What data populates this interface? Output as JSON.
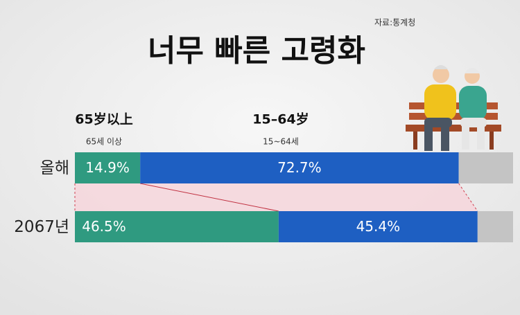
{
  "chart_data": {
    "type": "stacked-hbar",
    "source": "자료:통계청",
    "title": "너무 빠른 고령화",
    "categories": [
      "올해",
      "2067년"
    ],
    "series": [
      {
        "name": "65세 이상",
        "caption": "65岁以上",
        "color": "#2f9a80",
        "values": [
          14.9,
          46.5
        ],
        "value_labels": [
          "14.9%",
          "46.5%"
        ]
      },
      {
        "name": "15~64세",
        "caption": "15–64岁",
        "color": "#1e5fc2",
        "values": [
          72.7,
          45.4
        ],
        "value_labels": [
          "72.7%",
          "45.4%"
        ]
      },
      {
        "color": "#c4c4c4",
        "values": [
          12.4,
          8.1
        ]
      }
    ],
    "xlim": [
      0,
      100
    ]
  }
}
